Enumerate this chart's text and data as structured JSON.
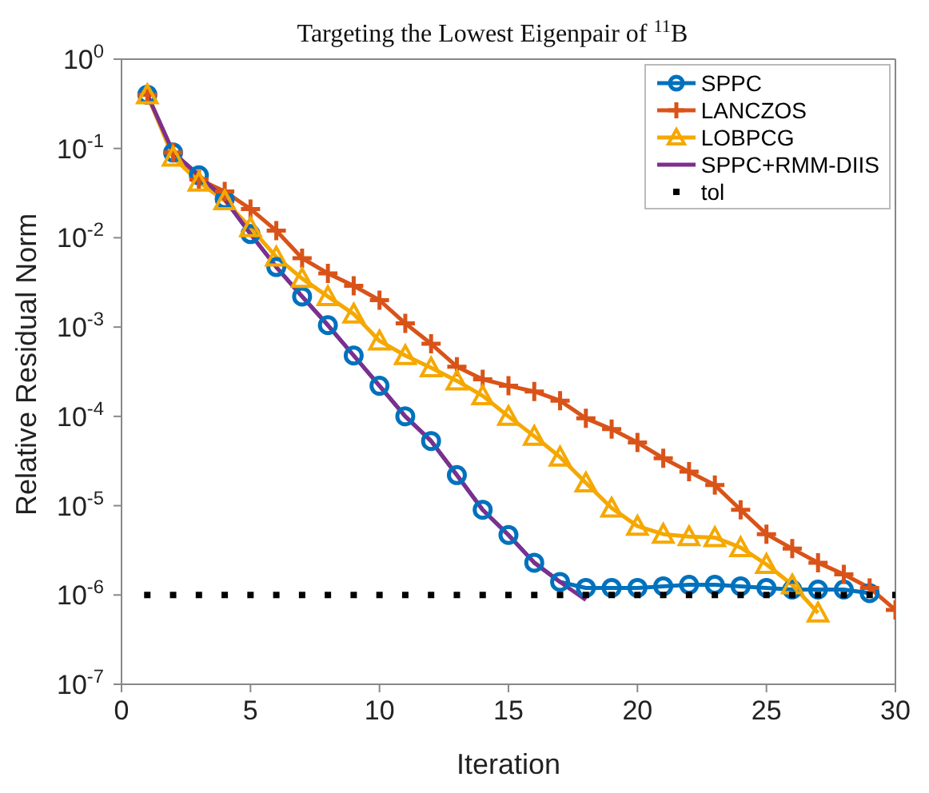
{
  "chart_data": {
    "type": "line",
    "title": "Targeting the Lowest Eigenpair of $^{11}$B",
    "xlabel": "Iteration",
    "ylabel": "Relative Residual Norm",
    "log": "y",
    "xlim": [
      0,
      30
    ],
    "xticks": [
      0,
      5,
      10,
      15,
      20,
      25,
      30
    ],
    "ylim": [
      1e-07,
      1
    ],
    "yticks": [
      {
        "value": 1e-07,
        "label": "10$^{-7}$"
      },
      {
        "value": 1e-06,
        "label": "10$^{-6}$"
      },
      {
        "value": 1e-05,
        "label": "10$^{-5}$"
      },
      {
        "value": 0.0001,
        "label": "10$^{-4}$"
      },
      {
        "value": 0.001,
        "label": "10$^{-3}$"
      },
      {
        "value": 0.01,
        "label": "10$^{-2}$"
      },
      {
        "value": 0.1,
        "label": "10$^{-1}$"
      },
      {
        "value": 1,
        "label": "10$^{0}$"
      }
    ],
    "legend": "top right",
    "line_style": "solid",
    "x": [
      1,
      2,
      3,
      4,
      5,
      6,
      7,
      8,
      9,
      10,
      11,
      12,
      13,
      14,
      15,
      16,
      17,
      18,
      19,
      20,
      21,
      22,
      23,
      24,
      25,
      26,
      27,
      28,
      29,
      30
    ],
    "series": [
      {
        "name": "SPPC",
        "color": "#0072bd",
        "marker": "circle",
        "values": [
          0.4,
          0.09,
          0.05,
          0.027,
          0.011,
          0.0047,
          0.0022,
          0.00105,
          0.00048,
          0.00022,
          0.0001,
          5.3e-05,
          2.2e-05,
          9e-06,
          4.7e-06,
          2.3e-06,
          1.4e-06,
          1.2e-06,
          1.2e-06,
          1.2e-06,
          1.25e-06,
          1.3e-06,
          1.3e-06,
          1.25e-06,
          1.2e-06,
          1.15e-06,
          1.15e-06,
          1.15e-06,
          1.05e-06,
          null
        ]
      },
      {
        "name": "LANCZOS",
        "color": "#d95319",
        "marker": "cross",
        "values": [
          0.4,
          0.09,
          0.045,
          0.033,
          0.021,
          0.012,
          0.0059,
          0.004,
          0.0029,
          0.002,
          0.0011,
          0.00065,
          0.00036,
          0.00026,
          0.00022,
          0.00019,
          0.00015,
          9.5e-05,
          7.2e-05,
          5.1e-05,
          3.4e-05,
          2.4e-05,
          1.7e-05,
          9e-06,
          4.8e-06,
          3.3e-06,
          2.3e-06,
          1.7e-06,
          1.2e-06,
          6.8e-07
        ]
      },
      {
        "name": "LOBPCG",
        "color": "#f5a800",
        "marker": "triangle",
        "values": [
          0.4,
          0.08,
          0.042,
          0.026,
          0.013,
          0.0061,
          0.0035,
          0.0022,
          0.0014,
          0.0007,
          0.00048,
          0.00035,
          0.00025,
          0.00017,
          0.0001,
          6e-05,
          3.5e-05,
          1.8e-05,
          9.4e-06,
          5.9e-06,
          4.8e-06,
          4.5e-06,
          4.4e-06,
          3.4e-06,
          2.2e-06,
          1.3e-06,
          6.3e-07,
          null,
          null,
          null
        ]
      },
      {
        "name": "SPPC+RMM-DIIS",
        "color": "#7e2f8e",
        "marker": "none",
        "values": [
          0.4,
          0.09,
          0.05,
          0.027,
          0.011,
          0.0047,
          0.0022,
          0.00105,
          0.00048,
          0.00022,
          0.0001,
          5.3e-05,
          2.2e-05,
          9e-06,
          4.7e-06,
          2.3e-06,
          1.4e-06,
          8.8e-07,
          null,
          null,
          null,
          null,
          null,
          null,
          null,
          null,
          null,
          null,
          null,
          null
        ]
      },
      {
        "name": "tol",
        "color": "#000000",
        "type": "scatter",
        "marker": "square",
        "values": [
          1e-06,
          1e-06,
          1e-06,
          1e-06,
          1e-06,
          1e-06,
          1e-06,
          1e-06,
          1e-06,
          1e-06,
          1e-06,
          1e-06,
          1e-06,
          1e-06,
          1e-06,
          1e-06,
          1e-06,
          1e-06,
          1e-06,
          1e-06,
          1e-06,
          1e-06,
          1e-06,
          1e-06,
          1e-06,
          1e-06,
          1e-06,
          1e-06,
          1e-06,
          1e-06
        ]
      }
    ]
  }
}
